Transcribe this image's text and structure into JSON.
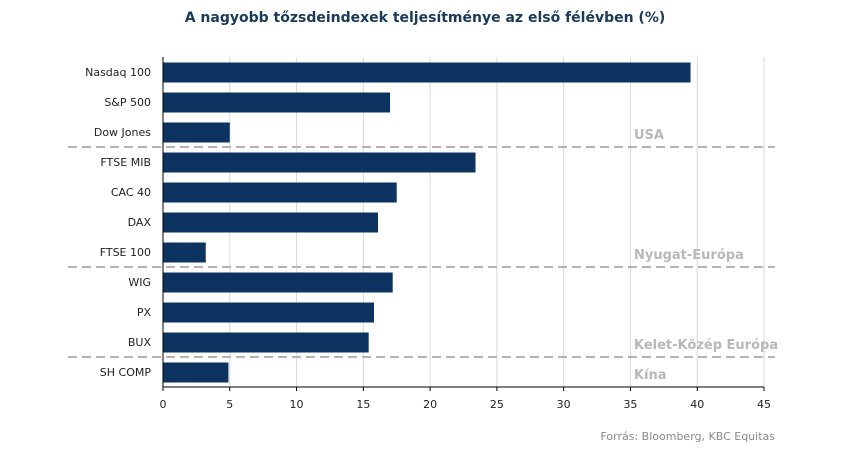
{
  "title": "A nagyobb tőzsdeindexek teljesítménye  az első félévben  (%)",
  "source": "Forrás: Bloomberg, KBC Equitas",
  "colors": {
    "bar": "#0d3461",
    "grid": "#d9d9d9",
    "separator": "#b3b3b3",
    "group_label": "#b8b8b8",
    "text": "#222222"
  },
  "chart_data": {
    "type": "bar",
    "orientation": "horizontal",
    "categories": [
      "Nasdaq 100",
      "S&P 500",
      "Dow Jones",
      "FTSE MIB",
      "CAC 40",
      "DAX",
      "FTSE 100",
      "WIG",
      "PX",
      "BUX",
      "SH COMP"
    ],
    "values": [
      39.5,
      17.0,
      5.0,
      23.4,
      17.5,
      16.1,
      3.2,
      17.2,
      15.8,
      15.4,
      4.9
    ],
    "groups": [
      {
        "label": "USA",
        "items": [
          "Nasdaq 100",
          "S&P 500",
          "Dow Jones"
        ]
      },
      {
        "label": "Nyugat-Európa",
        "items": [
          "FTSE MIB",
          "CAC 40",
          "DAX",
          "FTSE 100"
        ]
      },
      {
        "label": "Kelet-Közép Európa",
        "items": [
          "WIG",
          "PX",
          "BUX"
        ]
      },
      {
        "label": "Kína",
        "items": [
          "SH COMP"
        ]
      }
    ],
    "xlim": [
      0,
      45
    ],
    "xticks": [
      0,
      5,
      10,
      15,
      20,
      25,
      30,
      35,
      40,
      45
    ],
    "grid": true
  }
}
